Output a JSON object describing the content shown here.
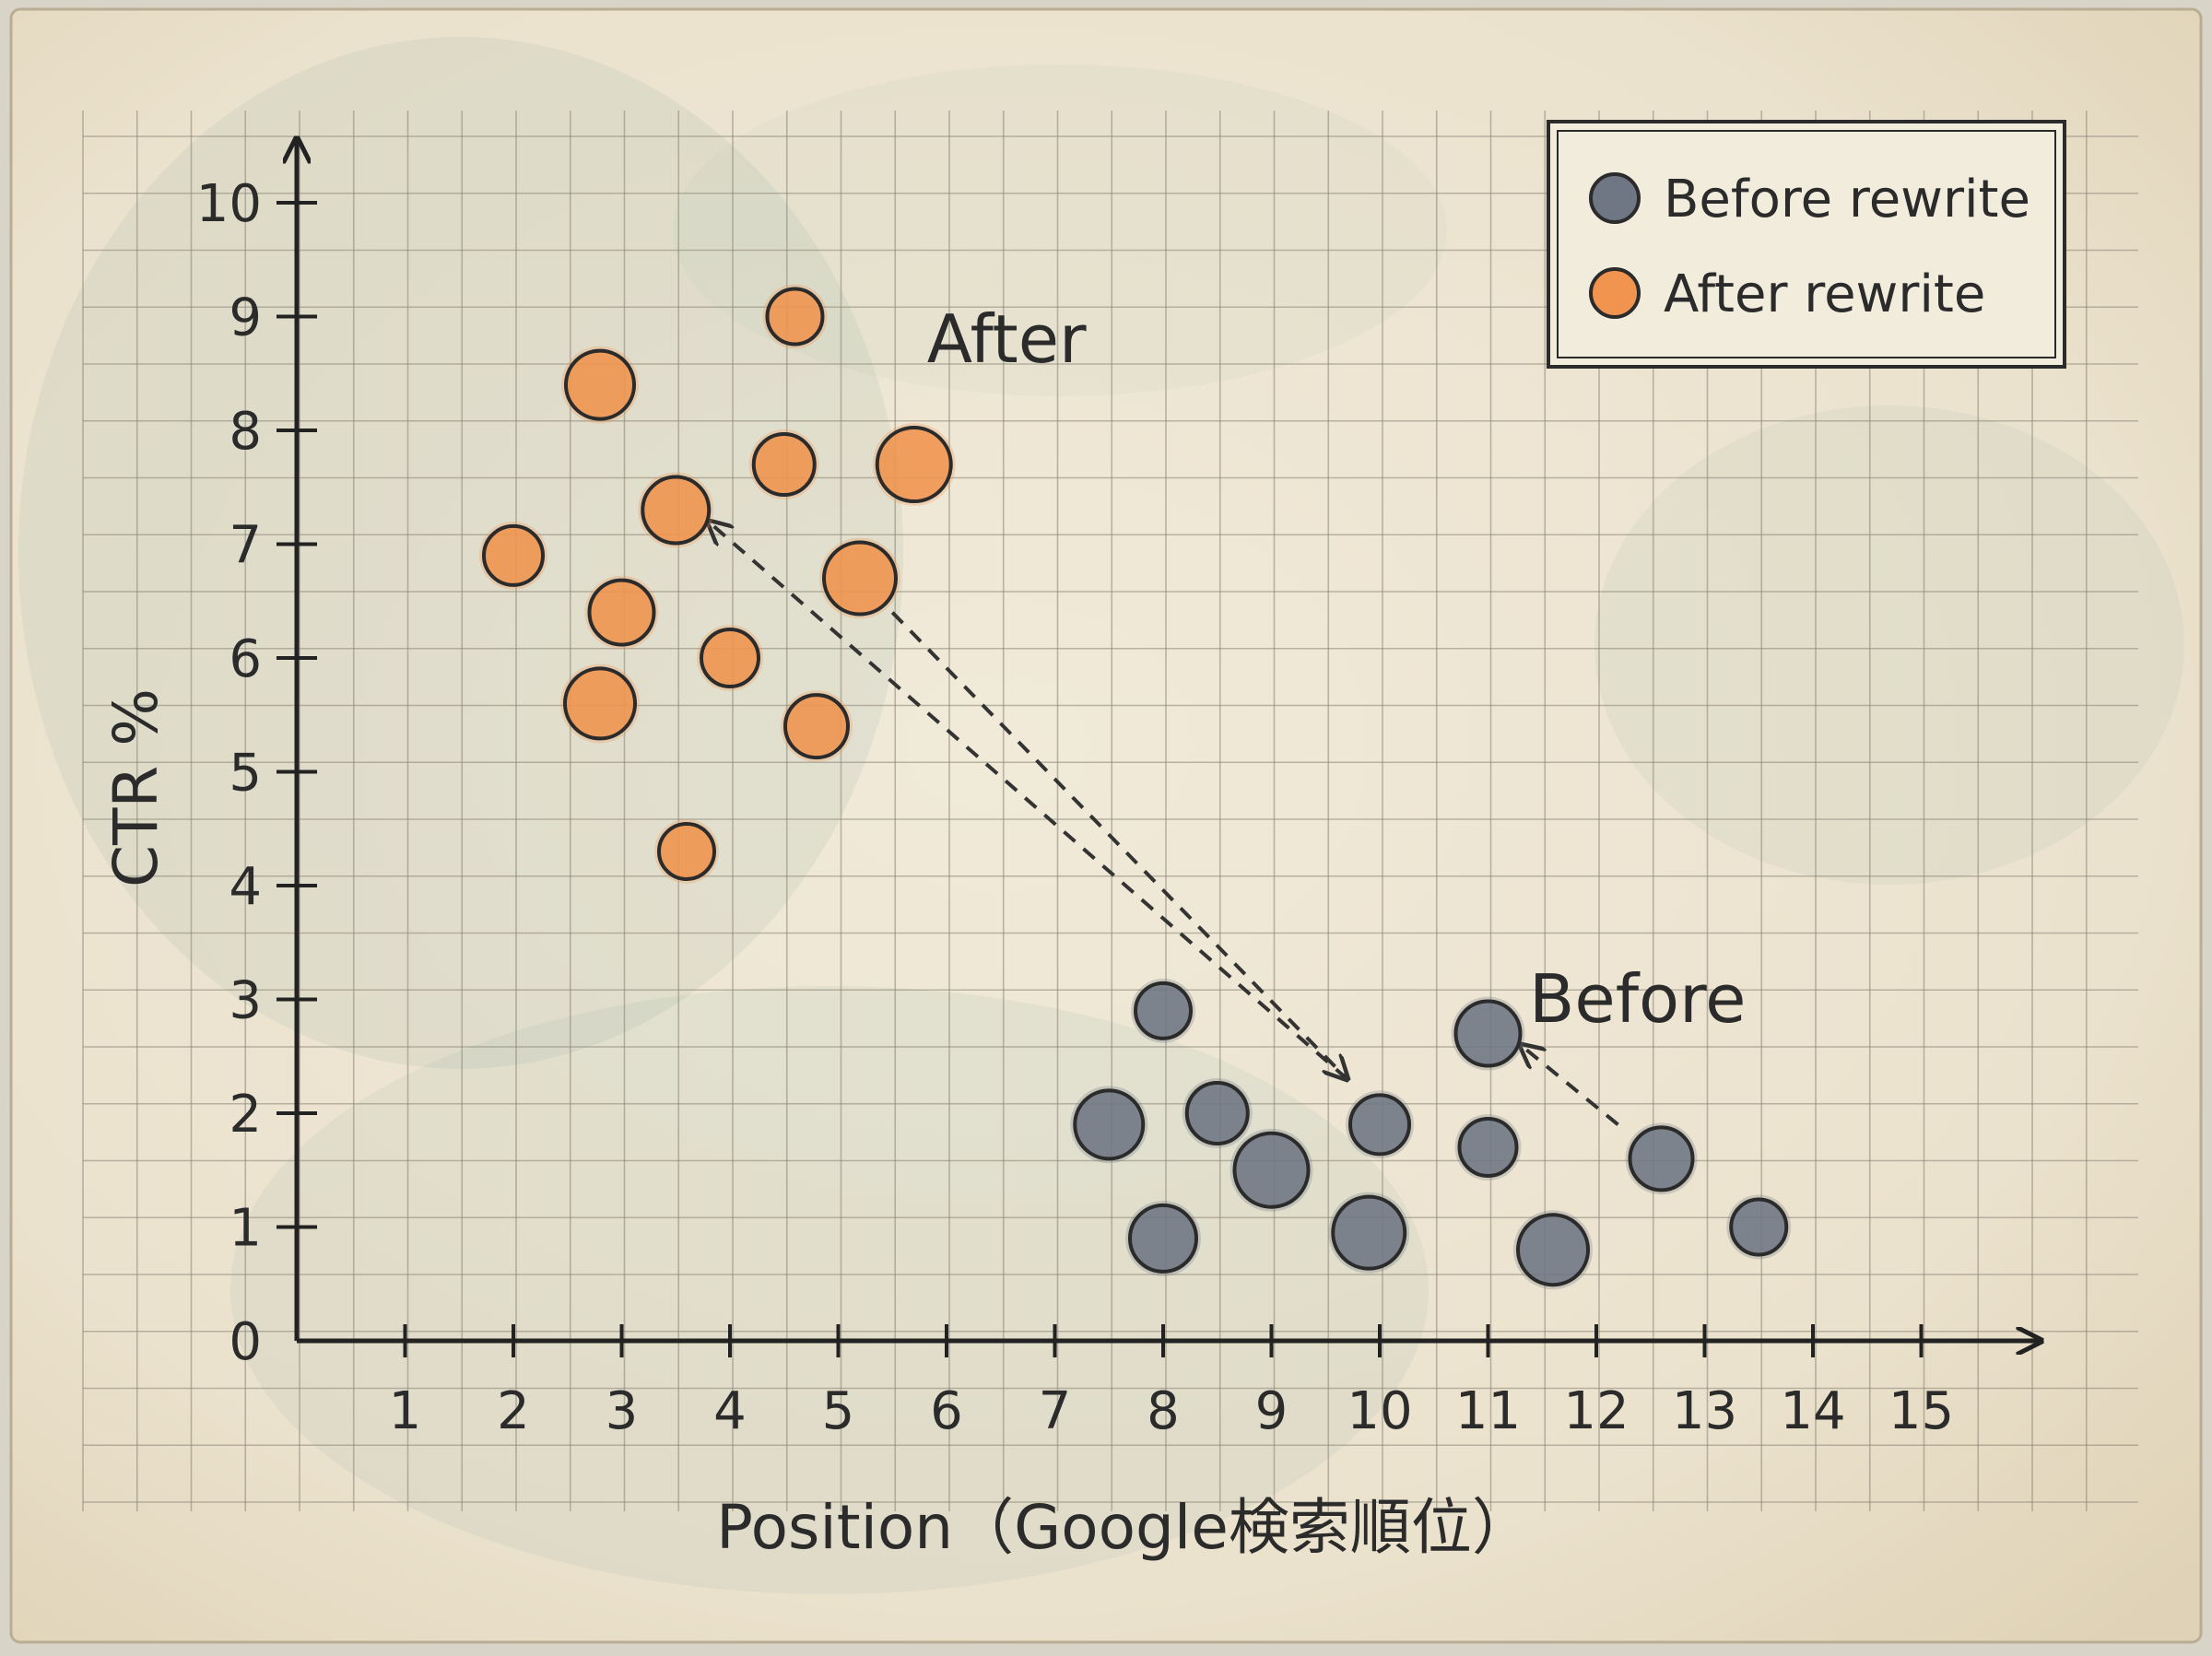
{
  "chart_data": {
    "type": "scatter",
    "title": "",
    "xlabel": "Position（Google検索順位）",
    "ylabel": "CTR %",
    "xlim": [
      0,
      16
    ],
    "ylim": [
      0,
      10.5
    ],
    "x_ticks": [
      "1",
      "2",
      "3",
      "4",
      "5",
      "6",
      "7",
      "8",
      "9",
      "10",
      "11",
      "12",
      "13",
      "14",
      "15"
    ],
    "y_ticks": [
      "0",
      "1",
      "2",
      "3",
      "4",
      "5",
      "6",
      "7",
      "8",
      "9",
      "10"
    ],
    "grid": true,
    "legend_position": "top-right",
    "series": [
      {
        "name": "Before rewrite",
        "color": "#6f7784",
        "points": [
          {
            "x": 8.0,
            "y": 2.9
          },
          {
            "x": 7.5,
            "y": 1.9
          },
          {
            "x": 8.5,
            "y": 2.0
          },
          {
            "x": 9.0,
            "y": 1.5
          },
          {
            "x": 8.0,
            "y": 0.9
          },
          {
            "x": 10.0,
            "y": 1.9
          },
          {
            "x": 9.9,
            "y": 0.95
          },
          {
            "x": 11.0,
            "y": 2.7
          },
          {
            "x": 11.0,
            "y": 1.7
          },
          {
            "x": 11.6,
            "y": 0.8
          },
          {
            "x": 12.6,
            "y": 1.6
          },
          {
            "x": 13.5,
            "y": 1.0
          }
        ]
      },
      {
        "name": "After rewrite",
        "color": "#f0944f",
        "points": [
          {
            "x": 4.6,
            "y": 9.0
          },
          {
            "x": 2.8,
            "y": 8.4
          },
          {
            "x": 4.5,
            "y": 7.7
          },
          {
            "x": 5.7,
            "y": 7.7
          },
          {
            "x": 3.5,
            "y": 7.3
          },
          {
            "x": 2.0,
            "y": 6.9
          },
          {
            "x": 5.2,
            "y": 6.7
          },
          {
            "x": 3.0,
            "y": 6.4
          },
          {
            "x": 4.0,
            "y": 6.0
          },
          {
            "x": 2.8,
            "y": 5.6
          },
          {
            "x": 4.8,
            "y": 5.4
          },
          {
            "x": 3.6,
            "y": 4.3
          }
        ]
      }
    ],
    "annotations": [
      {
        "text": "After",
        "x": 6.5,
        "y": 8.6
      },
      {
        "text": "Before",
        "x": 12.4,
        "y": 2.8
      }
    ],
    "arrows": [
      {
        "from": [
          9.7,
          2.3
        ],
        "to": [
          3.8,
          7.2
        ]
      },
      {
        "from": [
          5.5,
          6.4
        ],
        "to": [
          9.7,
          2.3
        ]
      },
      {
        "from": [
          12.2,
          1.9
        ],
        "to": [
          11.3,
          2.6
        ]
      }
    ]
  },
  "legend": {
    "items": [
      {
        "label": "Before rewrite",
        "color": "#6f7784"
      },
      {
        "label": "After rewrite",
        "color": "#f0944f"
      }
    ]
  }
}
